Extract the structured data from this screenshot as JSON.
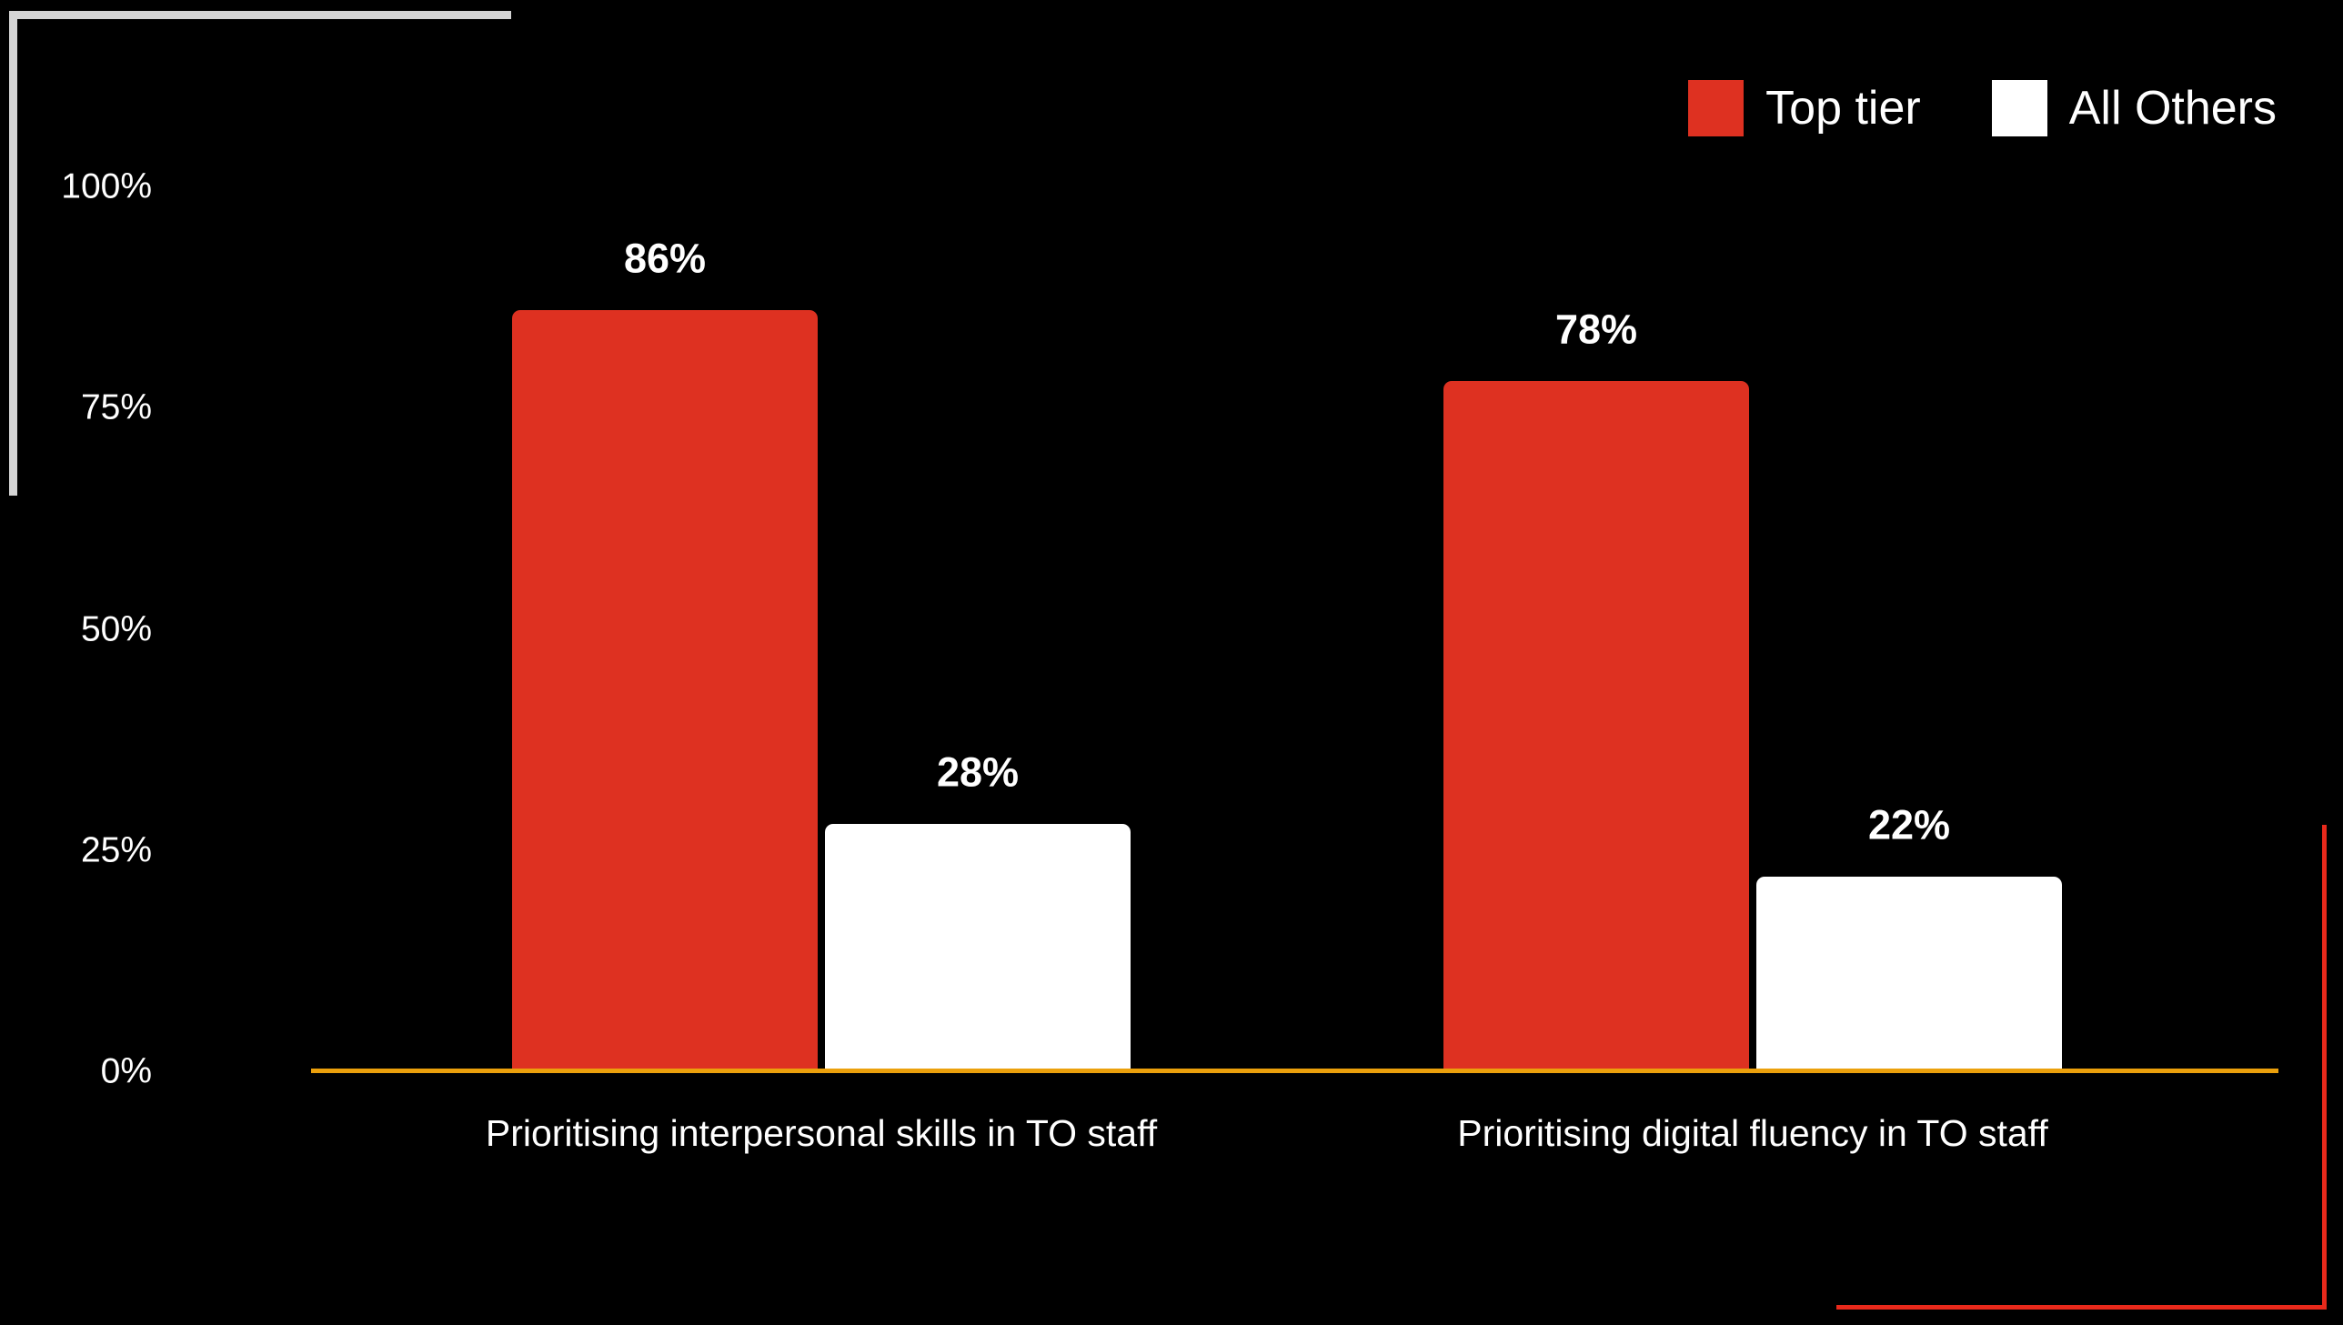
{
  "page": {
    "background": "#000000"
  },
  "decorations": {
    "top_left_frame_color": "#D5D5D5",
    "bottom_right_frame_color": "#E8291B"
  },
  "legend": {
    "items": [
      {
        "label": "Top tier",
        "swatch_color": "#DE3121"
      },
      {
        "label": "All Others",
        "swatch_color": "#FFFFFF"
      }
    ]
  },
  "chart_data": {
    "type": "bar",
    "categories": [
      "Prioritising interpersonal skills in TO staff",
      "Prioritising digital fluency in TO staff"
    ],
    "series": [
      {
        "name": "Top tier",
        "color": "#DE3121",
        "values": [
          86,
          78
        ],
        "value_labels": [
          "86%",
          "78%"
        ]
      },
      {
        "name": "All Others",
        "color": "#FFFFFF",
        "values": [
          28,
          22
        ],
        "value_labels": [
          "28%",
          "22%"
        ]
      }
    ],
    "yticks": [
      {
        "label": "100%",
        "value": 100
      },
      {
        "label": "75%",
        "value": 75
      },
      {
        "label": "50%",
        "value": 50
      },
      {
        "label": "25%",
        "value": 25
      },
      {
        "label": "0%",
        "value": 0
      }
    ],
    "ylim": [
      0,
      100
    ],
    "grid": false,
    "legend_position": "top-right",
    "baseline_color": "#EBA00C",
    "label_color": "#FFFFFF"
  }
}
